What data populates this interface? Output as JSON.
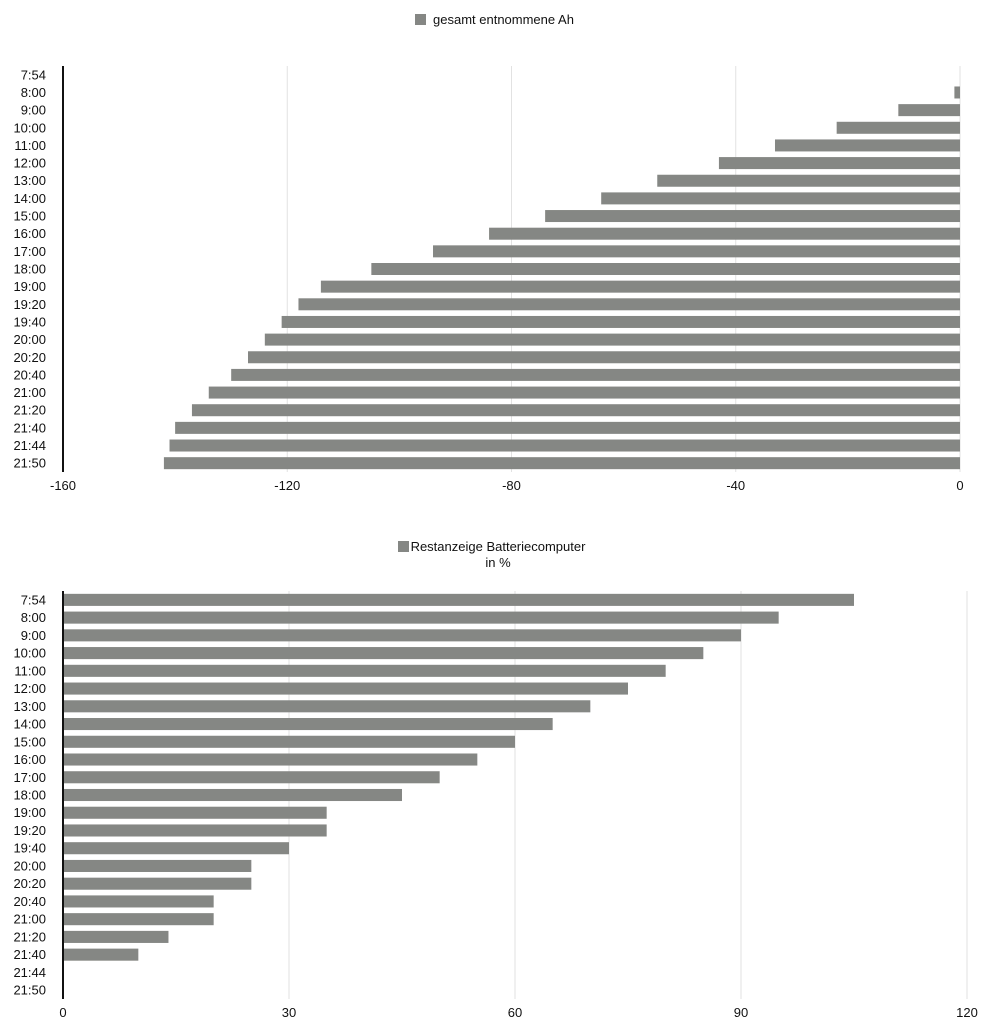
{
  "chart_data": [
    {
      "type": "bar",
      "orientation": "horizontal",
      "title": "",
      "legend": {
        "position": "top-center",
        "entries": [
          "gesamt entnommene Ah"
        ]
      },
      "categories": [
        "7:54",
        "8:00",
        "9:00",
        "10:00",
        "11:00",
        "12:00",
        "13:00",
        "14:00",
        "15:00",
        "16:00",
        "17:00",
        "18:00",
        "19:00",
        "19:20",
        "19:40",
        "20:00",
        "20:20",
        "20:40",
        "21:00",
        "21:20",
        "21:40",
        "21:44",
        "21:50"
      ],
      "series": [
        {
          "name": "gesamt entnommene Ah",
          "color": "#858784",
          "values": [
            0,
            -1,
            -11,
            -22,
            -33,
            -43,
            -54,
            -64,
            -74,
            -84,
            -94,
            -105,
            -114,
            -118,
            -121,
            -124,
            -127,
            -130,
            -134,
            -137,
            -140,
            -141,
            -142
          ]
        }
      ],
      "xlim": [
        -160,
        0
      ],
      "xticks": [
        "-160",
        "-120",
        "-80",
        "-40",
        "0"
      ],
      "grid": true
    },
    {
      "type": "bar",
      "orientation": "horizontal",
      "title": "",
      "legend": {
        "position": "top-center",
        "entries": [
          "Restanzeige Batteriecomputer",
          "in %"
        ]
      },
      "categories": [
        "7:54",
        "8:00",
        "9:00",
        "10:00",
        "11:00",
        "12:00",
        "13:00",
        "14:00",
        "15:00",
        "16:00",
        "17:00",
        "18:00",
        "19:00",
        "19:20",
        "19:40",
        "20:00",
        "20:20",
        "20:40",
        "21:00",
        "21:20",
        "21:40",
        "21:44",
        "21:50"
      ],
      "series": [
        {
          "name": "Restanzeige Batteriecomputer in %",
          "color": "#858784",
          "values": [
            105,
            95,
            90,
            85,
            80,
            75,
            70,
            65,
            60,
            55,
            50,
            45,
            35,
            35,
            30,
            25,
            25,
            20,
            20,
            14,
            10,
            0,
            0
          ]
        }
      ],
      "xlim": [
        0,
        120
      ],
      "xticks": [
        "0",
        "30",
        "60",
        "90",
        "120"
      ],
      "grid": true
    }
  ]
}
